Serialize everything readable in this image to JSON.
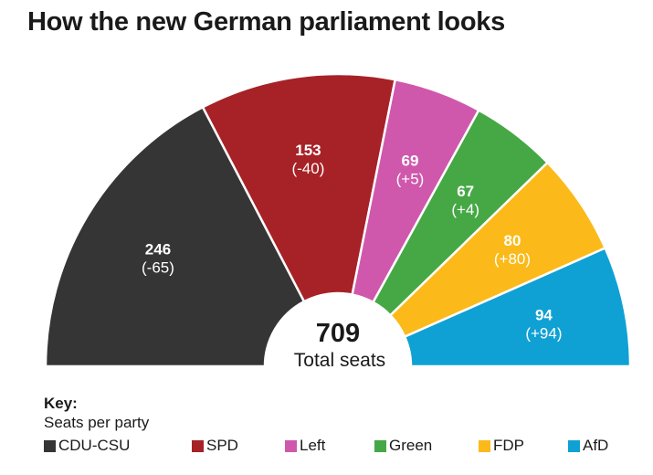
{
  "title": "How the new German parliament looks",
  "chart_data": {
    "type": "pie",
    "subtype": "half-donut parliament chart",
    "title": "How the new German parliament looks",
    "total": 709,
    "total_label": "Total seats",
    "legend_title": "Key:",
    "legend_subtitle": "Seats per party",
    "legend_placement": "bottom",
    "series": [
      {
        "name": "CDU-CSU",
        "value": 246,
        "change": "(-65)",
        "color": "#353535"
      },
      {
        "name": "SPD",
        "value": 153,
        "change": "(-40)",
        "color": "#a72227"
      },
      {
        "name": "Left",
        "value": 69,
        "change": "(+5)",
        "color": "#cf58ad"
      },
      {
        "name": "Green",
        "value": 67,
        "change": "(+4)",
        "color": "#46a845"
      },
      {
        "name": "FDP",
        "value": 80,
        "change": "(+80)",
        "color": "#fbba1a"
      },
      {
        "name": "AfD",
        "value": 94,
        "change": "(+94)",
        "color": "#0fa1d4"
      }
    ]
  }
}
